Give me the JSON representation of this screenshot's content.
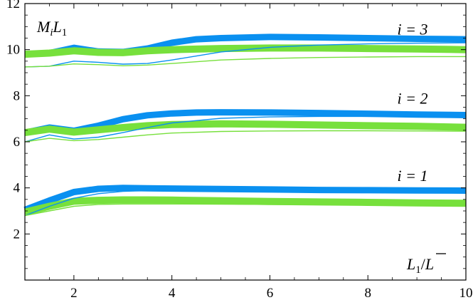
{
  "chart_data": {
    "type": "line",
    "title": "",
    "xlabel": "",
    "ylabel": "",
    "xlim": [
      1,
      10
    ],
    "ylim": [
      0,
      12
    ],
    "x_ticks": [
      2,
      4,
      6,
      8,
      10
    ],
    "y_ticks": [
      2,
      4,
      6,
      8,
      10,
      12
    ],
    "grid": false,
    "legend": "none",
    "colors": {
      "blue": "#0a90f0",
      "green": "#77e03c",
      "axis": "#000000"
    },
    "annotations": {
      "ylabel_corner": {
        "base": "M",
        "sub1": "i",
        "mid": "L",
        "sub2": "1"
      },
      "xlabel_corner": {
        "base": "L",
        "sub": "1",
        "slash": "/",
        "bar": "L"
      },
      "groups": [
        {
          "label": "i = 3",
          "x": 8.6,
          "y": 10.9
        },
        {
          "label": "i = 2",
          "x": 8.6,
          "y": 7.9
        },
        {
          "label": "i = 1",
          "x": 8.6,
          "y": 4.55
        }
      ]
    },
    "series": [
      {
        "group": "i=3",
        "color": "blue",
        "weight": "thick",
        "x": [
          1,
          1.5,
          2,
          2.5,
          3,
          3.5,
          4,
          4.5,
          5,
          6,
          7,
          8,
          9,
          10
        ],
        "y": [
          9.8,
          9.85,
          10.08,
          9.92,
          9.9,
          10.05,
          10.3,
          10.45,
          10.5,
          10.55,
          10.53,
          10.5,
          10.47,
          10.45
        ]
      },
      {
        "group": "i=3",
        "color": "green",
        "weight": "thick",
        "x": [
          1,
          1.5,
          2,
          2.5,
          3,
          3.5,
          4,
          5,
          6,
          7,
          8,
          9,
          10
        ],
        "y": [
          9.8,
          9.85,
          9.95,
          9.88,
          9.87,
          9.95,
          10.0,
          10.05,
          10.07,
          10.07,
          10.05,
          10.03,
          10.0
        ]
      },
      {
        "group": "i=3",
        "color": "blue",
        "weight": "thin",
        "x": [
          1,
          1.5,
          2,
          2.5,
          3,
          3.5,
          4,
          5,
          6,
          7,
          8,
          9,
          10
        ],
        "y": [
          9.25,
          9.28,
          9.5,
          9.45,
          9.37,
          9.4,
          9.55,
          9.9,
          10.1,
          10.2,
          10.25,
          10.28,
          10.3
        ]
      },
      {
        "group": "i=3",
        "color": "green",
        "weight": "thin",
        "x": [
          1,
          1.5,
          2,
          2.5,
          3,
          3.5,
          4,
          5,
          6,
          7,
          8,
          9,
          10
        ],
        "y": [
          9.25,
          9.28,
          9.38,
          9.35,
          9.3,
          9.33,
          9.4,
          9.55,
          9.62,
          9.66,
          9.68,
          9.7,
          9.7
        ]
      },
      {
        "group": "i=2",
        "color": "blue",
        "weight": "thick",
        "x": [
          1,
          1.5,
          2,
          2.5,
          3,
          3.5,
          4,
          4.5,
          5,
          6,
          7,
          8,
          9,
          10
        ],
        "y": [
          6.4,
          6.62,
          6.48,
          6.7,
          6.98,
          7.15,
          7.23,
          7.27,
          7.28,
          7.27,
          7.25,
          7.22,
          7.18,
          7.16
        ]
      },
      {
        "group": "i=2",
        "color": "green",
        "weight": "thick",
        "x": [
          1,
          1.5,
          2,
          2.5,
          3,
          3.5,
          4,
          5,
          6,
          7,
          8,
          9,
          10
        ],
        "y": [
          6.4,
          6.55,
          6.42,
          6.52,
          6.62,
          6.7,
          6.75,
          6.78,
          6.76,
          6.73,
          6.7,
          6.67,
          6.63
        ]
      },
      {
        "group": "i=2",
        "color": "blue",
        "weight": "thin",
        "x": [
          1,
          1.5,
          2,
          2.5,
          3,
          3.5,
          4,
          5,
          6,
          7,
          8,
          9,
          10
        ],
        "y": [
          6.0,
          6.3,
          6.12,
          6.2,
          6.4,
          6.62,
          6.82,
          7.02,
          7.08,
          7.1,
          7.1,
          7.1,
          7.1
        ]
      },
      {
        "group": "i=2",
        "color": "green",
        "weight": "thin",
        "x": [
          1,
          1.5,
          2,
          2.5,
          3,
          3.5,
          4,
          5,
          6,
          7,
          8,
          9,
          10
        ],
        "y": [
          6.0,
          6.15,
          6.05,
          6.1,
          6.2,
          6.3,
          6.38,
          6.45,
          6.47,
          6.48,
          6.48,
          6.47,
          6.46
        ]
      },
      {
        "group": "i=1",
        "color": "blue",
        "weight": "thick",
        "x": [
          1,
          1.5,
          2,
          2.5,
          3,
          3.5,
          4,
          5,
          6,
          7,
          8,
          9,
          10
        ],
        "y": [
          3.05,
          3.45,
          3.82,
          3.96,
          4.0,
          3.98,
          3.97,
          3.95,
          3.93,
          3.91,
          3.9,
          3.89,
          3.88
        ]
      },
      {
        "group": "i=1",
        "color": "green",
        "weight": "thick",
        "x": [
          1,
          1.5,
          2,
          2.5,
          3,
          3.5,
          4,
          5,
          6,
          7,
          8,
          9,
          10
        ],
        "y": [
          2.95,
          3.2,
          3.42,
          3.46,
          3.48,
          3.48,
          3.47,
          3.44,
          3.41,
          3.39,
          3.37,
          3.35,
          3.33
        ]
      },
      {
        "group": "i=1",
        "color": "blue",
        "weight": "thin",
        "x": [
          1,
          1.5,
          2,
          2.5,
          3,
          3.5,
          4,
          5,
          6,
          7,
          8,
          9,
          10
        ],
        "y": [
          2.8,
          3.2,
          3.55,
          3.75,
          3.85,
          3.88,
          3.88,
          3.87,
          3.86,
          3.85,
          3.85,
          3.85,
          3.85
        ]
      },
      {
        "group": "i=1",
        "color": "green",
        "weight": "thin",
        "x": [
          1,
          1.5,
          2,
          2.5,
          3,
          3.5,
          4,
          5,
          6,
          7,
          8,
          9,
          10
        ],
        "y": [
          2.8,
          3.0,
          3.2,
          3.28,
          3.3,
          3.3,
          3.3,
          3.29,
          3.28,
          3.27,
          3.26,
          3.25,
          3.25
        ]
      }
    ]
  }
}
